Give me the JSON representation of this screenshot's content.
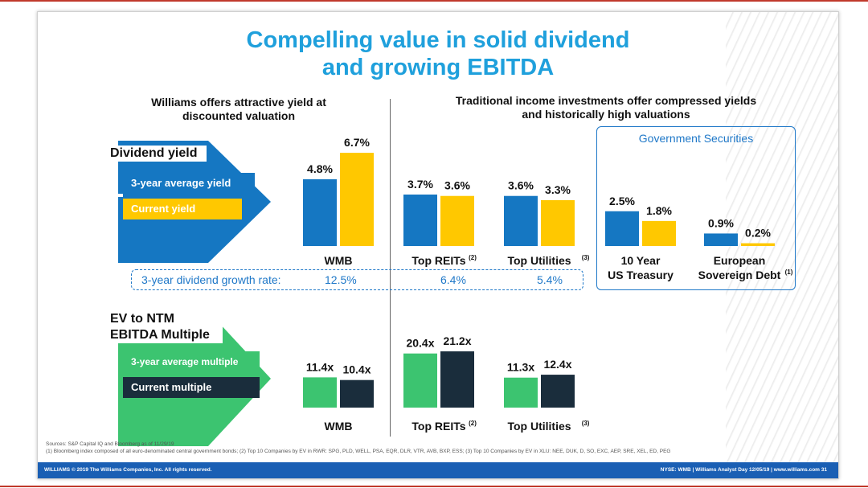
{
  "title": {
    "line1": "Compelling value in solid dividend",
    "line2": "and growing EBITDA"
  },
  "left_subhead": {
    "line1": "Williams offers attractive yield at",
    "line2": "discounted valuation"
  },
  "right_subhead": {
    "line1": "Traditional income investments offer compressed yields",
    "line2": "and historically high valuations"
  },
  "gov_title": "Government Securities",
  "dividend_arrow": {
    "label": "Dividend yield",
    "band1": "3-year average yield",
    "band2": "Current yield"
  },
  "ev_arrow": {
    "label1": "EV to NTM",
    "label2": "EBITDA Multiple",
    "band1": "3-year average multiple",
    "band2": "Current multiple"
  },
  "growth": {
    "label": "3-year dividend growth rate:",
    "wmb": "12.5%",
    "reits": "6.4%",
    "utilities": "5.4%"
  },
  "sources": {
    "line1": "Sources: S&P Capital IQ and Bloomberg as of 11/29/19",
    "line2": "(1) Bloomberg index composed of all euro-denominated central government bonds; (2) Top 10 Companies by EV in RWR: SPG, PLD, WELL, PSA, EQR, DLR, VTR, AVB, BXP, ESS; (3) Top 10 Companies by EV in XLU: NEE, DUK, D, SO, EXC, AEP, SRE, XEL, ED, PEG"
  },
  "footer": {
    "left": "WILLIAMS © 2019 The Williams Companies, Inc. All rights reserved.",
    "right": "NYSE: WMB  |  Williams Analyst Day 12/05/19  |  www.williams.com    31"
  },
  "colors": {
    "avg_yield": "#1577c2",
    "current_yield": "#ffc800",
    "avg_multiple": "#3cc470",
    "current_multiple": "#1a2d3c"
  },
  "chart_data": [
    {
      "type": "bar",
      "title": "Dividend yield",
      "series_names": [
        "3-year average yield",
        "Current yield"
      ],
      "groups": [
        {
          "name": "WMB",
          "sup": "",
          "values": [
            4.8,
            6.7
          ],
          "labels": [
            "4.8%",
            "6.7%"
          ]
        },
        {
          "name": "Top REITs",
          "sup": "(2)",
          "values": [
            3.7,
            3.6
          ],
          "labels": [
            "3.7%",
            "3.6%"
          ]
        },
        {
          "name": "Top Utilities",
          "sup": "(3)",
          "values": [
            3.6,
            3.3
          ],
          "labels": [
            "3.6%",
            "3.3%"
          ]
        },
        {
          "name": "10 Year",
          "name2": "US Treasury",
          "sup": "",
          "values": [
            2.5,
            1.8
          ],
          "labels": [
            "2.5%",
            "1.8%"
          ]
        },
        {
          "name": "European",
          "name2": "Sovereign Debt",
          "sup": "(1)",
          "values": [
            0.9,
            0.2
          ],
          "labels": [
            "0.9%",
            "0.2%"
          ]
        }
      ]
    },
    {
      "type": "bar",
      "title": "EV to NTM EBITDA Multiple",
      "series_names": [
        "3-year average multiple",
        "Current multiple"
      ],
      "groups": [
        {
          "name": "WMB",
          "sup": "",
          "values": [
            11.4,
            10.4
          ],
          "labels": [
            "11.4x",
            "10.4x"
          ]
        },
        {
          "name": "Top REITs",
          "sup": "(2)",
          "values": [
            20.4,
            21.2
          ],
          "labels": [
            "20.4x",
            "21.2x"
          ]
        },
        {
          "name": "Top Utilities",
          "sup": "(3)",
          "values": [
            11.3,
            12.4
          ],
          "labels": [
            "11.3x",
            "12.4x"
          ]
        }
      ]
    }
  ]
}
